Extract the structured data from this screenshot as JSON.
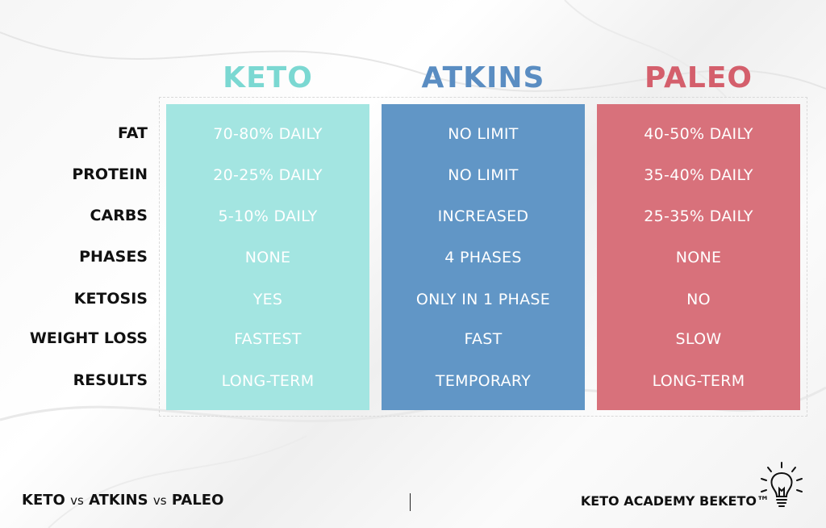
{
  "colors": {
    "keto": "#a3e5e1",
    "atkins": "#6196c6",
    "paleo": "#d8717b",
    "keto_heading": "#7bd8d2",
    "atkins_heading": "#5a8dc2",
    "paleo_heading": "#d45f6c"
  },
  "row_labels": [
    "FAT",
    "PROTEIN",
    "CARBS",
    "PHASES",
    "KETOSIS",
    "WEIGHT LOSS",
    "RESULTS"
  ],
  "columns": [
    {
      "name": "KETO",
      "values": [
        "70-80% DAILY",
        "20-25% DAILY",
        "5-10% DAILY",
        "NONE",
        "YES",
        "FASTEST",
        "LONG-TERM"
      ]
    },
    {
      "name": "ATKINS",
      "values": [
        "NO LIMIT",
        "NO LIMIT",
        "INCREASED",
        "4 PHASES",
        "ONLY IN 1 PHASE",
        "FAST",
        "TEMPORARY"
      ]
    },
    {
      "name": "PALEO",
      "values": [
        "40-50% DAILY",
        "35-40% DAILY",
        "25-35% DAILY",
        "NONE",
        "NO",
        "SLOW",
        "LONG-TERM"
      ]
    }
  ],
  "footer": {
    "left_keto": "KETO",
    "left_vs1": "vs",
    "left_atkins": "ATKINS",
    "left_vs2": "vs",
    "left_paleo": "PALEO",
    "right": "KETO ACADEMY BEKETO™",
    "icon": "lightbulb-icon"
  }
}
